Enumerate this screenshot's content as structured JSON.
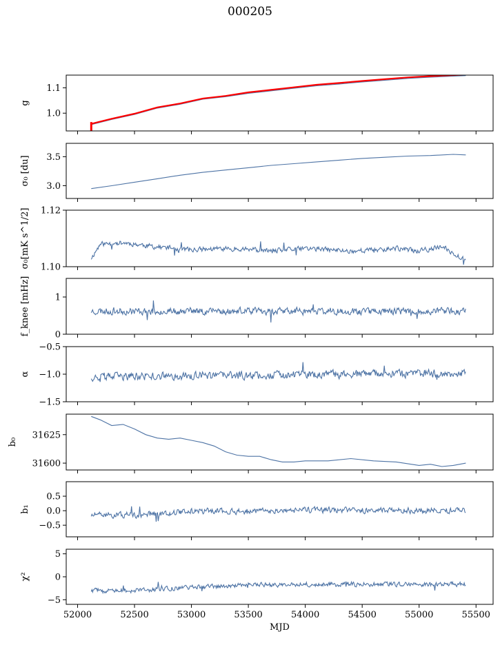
{
  "figure": {
    "title": "000205"
  },
  "colors": {
    "series": "#4c72a4",
    "highlight": "#ff0000",
    "axes": "#000000"
  },
  "chart_data": {
    "type": "line",
    "title": "000205",
    "xlabel": "MJD",
    "xlim": [
      51900,
      55650
    ],
    "xticks": [
      52000,
      52500,
      53000,
      53500,
      54000,
      54500,
      55000,
      55500
    ],
    "xtick_labels": [
      "52000",
      "52500",
      "53000",
      "53500",
      "54000",
      "54500",
      "55000",
      "55500"
    ],
    "x_range": [
      52120,
      55410
    ],
    "panels": [
      {
        "id": "g",
        "ylabel": "g",
        "ylim": [
          0.93,
          1.15
        ],
        "yticks": [
          1.0,
          1.1
        ],
        "ytick_labels": [
          "1.0",
          "1.1"
        ],
        "series": [
          {
            "color": "#4c72a4",
            "points": [
              [
                52120,
                0.955
              ],
              [
                52300,
                0.975
              ],
              [
                52500,
                0.995
              ],
              [
                52700,
                1.02
              ],
              [
                52900,
                1.035
              ],
              [
                53100,
                1.055
              ],
              [
                53300,
                1.065
              ],
              [
                53500,
                1.078
              ],
              [
                53700,
                1.088
              ],
              [
                53900,
                1.098
              ],
              [
                54100,
                1.108
              ],
              [
                54300,
                1.115
              ],
              [
                54500,
                1.123
              ],
              [
                54700,
                1.13
              ],
              [
                54900,
                1.137
              ],
              [
                55100,
                1.142
              ],
              [
                55300,
                1.146
              ],
              [
                55410,
                1.148
              ]
            ]
          },
          {
            "color": "#ff0000",
            "points": [
              [
                52120,
                0.958
              ],
              [
                52300,
                0.978
              ],
              [
                52500,
                0.998
              ],
              [
                52700,
                1.023
              ],
              [
                52900,
                1.038
              ],
              [
                53100,
                1.058
              ],
              [
                53300,
                1.068
              ],
              [
                53500,
                1.082
              ],
              [
                53700,
                1.092
              ],
              [
                53900,
                1.102
              ],
              [
                54100,
                1.112
              ],
              [
                54300,
                1.119
              ],
              [
                54500,
                1.127
              ],
              [
                54700,
                1.134
              ],
              [
                54900,
                1.141
              ],
              [
                55100,
                1.146
              ],
              [
                55300,
                1.15
              ],
              [
                55410,
                1.152
              ]
            ]
          }
        ],
        "spike": {
          "x": 52120,
          "from": 0.93,
          "to": 0.965
        }
      },
      {
        "id": "sigma0_du",
        "ylabel": "σ₀ [du]",
        "ylim": [
          2.78,
          3.73
        ],
        "yticks": [
          3.0,
          3.5
        ],
        "ytick_labels": [
          "3.0",
          "3.5"
        ],
        "series": [
          {
            "color": "#4c72a4",
            "points": [
              [
                52120,
                2.95
              ],
              [
                52300,
                3.0
              ],
              [
                52500,
                3.06
              ],
              [
                52700,
                3.12
              ],
              [
                52900,
                3.18
              ],
              [
                53100,
                3.23
              ],
              [
                53300,
                3.27
              ],
              [
                53500,
                3.31
              ],
              [
                53700,
                3.35
              ],
              [
                53900,
                3.38
              ],
              [
                54100,
                3.41
              ],
              [
                54300,
                3.44
              ],
              [
                54500,
                3.47
              ],
              [
                54700,
                3.49
              ],
              [
                54900,
                3.51
              ],
              [
                55100,
                3.52
              ],
              [
                55300,
                3.54
              ],
              [
                55410,
                3.53
              ]
            ]
          }
        ]
      },
      {
        "id": "sigma0_mk",
        "ylabel": "σ₀[mK s^1/2]",
        "ylim": [
          1.1,
          1.12
        ],
        "yticks": [
          1.1,
          1.12
        ],
        "ytick_labels": [
          "1.10",
          "1.12"
        ],
        "series": [
          {
            "color": "#4c72a4",
            "noise": {
              "seed": 11,
              "amp": 0.0012,
              "step": 6,
              "baseline": [
                [
                  52120,
                  1.103
                ],
                [
                  52200,
                  1.108
                ],
                [
                  52400,
                  1.1085
                ],
                [
                  52700,
                  1.107
                ],
                [
                  53000,
                  1.106
                ],
                [
                  53400,
                  1.1065
                ],
                [
                  53700,
                  1.1055
                ],
                [
                  54000,
                  1.1065
                ],
                [
                  54400,
                  1.1055
                ],
                [
                  54800,
                  1.1065
                ],
                [
                  55000,
                  1.1055
                ],
                [
                  55200,
                  1.107
                ],
                [
                  55410,
                  1.1025
                ]
              ]
            }
          }
        ]
      },
      {
        "id": "fknee",
        "ylabel": "f_knee [mHz]",
        "ylim": [
          0,
          1.5
        ],
        "yticks": [
          0,
          1
        ],
        "ytick_labels": [
          "0",
          "1"
        ],
        "series": [
          {
            "color": "#4c72a4",
            "noise": {
              "seed": 23,
              "amp": 0.13,
              "step": 6,
              "baseline": [
                [
                  52120,
                  0.62
                ],
                [
                  55410,
                  0.62
                ]
              ]
            }
          }
        ]
      },
      {
        "id": "alpha",
        "ylabel": "α",
        "ylim": [
          -1.5,
          -0.5
        ],
        "yticks": [
          -1.5,
          -1.0,
          -0.5
        ],
        "ytick_labels": [
          "−1.5",
          "−1.0",
          "−0.5"
        ],
        "series": [
          {
            "color": "#4c72a4",
            "noise": {
              "seed": 37,
              "amp": 0.1,
              "step": 6,
              "baseline": [
                [
                  52120,
                  -1.05
                ],
                [
                  55410,
                  -0.98
                ]
              ]
            }
          }
        ]
      },
      {
        "id": "b0",
        "ylabel": "b₀",
        "ylim": [
          31594,
          31643
        ],
        "yticks": [
          31600,
          31625
        ],
        "ytick_labels": [
          "31600",
          "31625"
        ],
        "series": [
          {
            "color": "#4c72a4",
            "points": [
              [
                52120,
                31641
              ],
              [
                52200,
                31638
              ],
              [
                52300,
                31633
              ],
              [
                52400,
                31634
              ],
              [
                52500,
                31630
              ],
              [
                52600,
                31625
              ],
              [
                52700,
                31622
              ],
              [
                52800,
                31621
              ],
              [
                52900,
                31622
              ],
              [
                53000,
                31620
              ],
              [
                53100,
                31618
              ],
              [
                53200,
                31615
              ],
              [
                53300,
                31610
              ],
              [
                53400,
                31607
              ],
              [
                53500,
                31606
              ],
              [
                53600,
                31606
              ],
              [
                53700,
                31603
              ],
              [
                53800,
                31601
              ],
              [
                53900,
                31601
              ],
              [
                54000,
                31602
              ],
              [
                54200,
                31602
              ],
              [
                54400,
                31604
              ],
              [
                54600,
                31602
              ],
              [
                54800,
                31601
              ],
              [
                55000,
                31598
              ],
              [
                55100,
                31599
              ],
              [
                55200,
                31597
              ],
              [
                55300,
                31598
              ],
              [
                55410,
                31600
              ]
            ]
          }
        ]
      },
      {
        "id": "b1",
        "ylabel": "b₁",
        "ylim": [
          -0.9,
          1.0
        ],
        "yticks": [
          -0.5,
          0.0,
          0.5
        ],
        "ytick_labels": [
          "−0.5",
          "0.0",
          "0.5"
        ],
        "series": [
          {
            "color": "#4c72a4",
            "noise": {
              "seed": 51,
              "amp": 0.14,
              "step": 6,
              "baseline": [
                [
                  52120,
                  -0.15
                ],
                [
                  52500,
                  -0.15
                ],
                [
                  53000,
                  -0.02
                ],
                [
                  53500,
                  -0.02
                ],
                [
                  54000,
                  0.02
                ],
                [
                  55410,
                  0.0
                ]
              ]
            }
          }
        ]
      },
      {
        "id": "chi2",
        "ylabel": "χ²",
        "ylim": [
          -6,
          6
        ],
        "yticks": [
          -5,
          0,
          5
        ],
        "ytick_labels": [
          "−5",
          "0",
          "5"
        ],
        "series": [
          {
            "color": "#4c72a4",
            "noise": {
              "seed": 73,
              "amp": 0.7,
              "step": 6,
              "baseline": [
                [
                  52120,
                  -3.0
                ],
                [
                  52500,
                  -3.0
                ],
                [
                  53000,
                  -2.3
                ],
                [
                  53500,
                  -1.8
                ],
                [
                  54000,
                  -1.6
                ],
                [
                  55410,
                  -1.6
                ]
              ]
            }
          }
        ]
      }
    ]
  }
}
